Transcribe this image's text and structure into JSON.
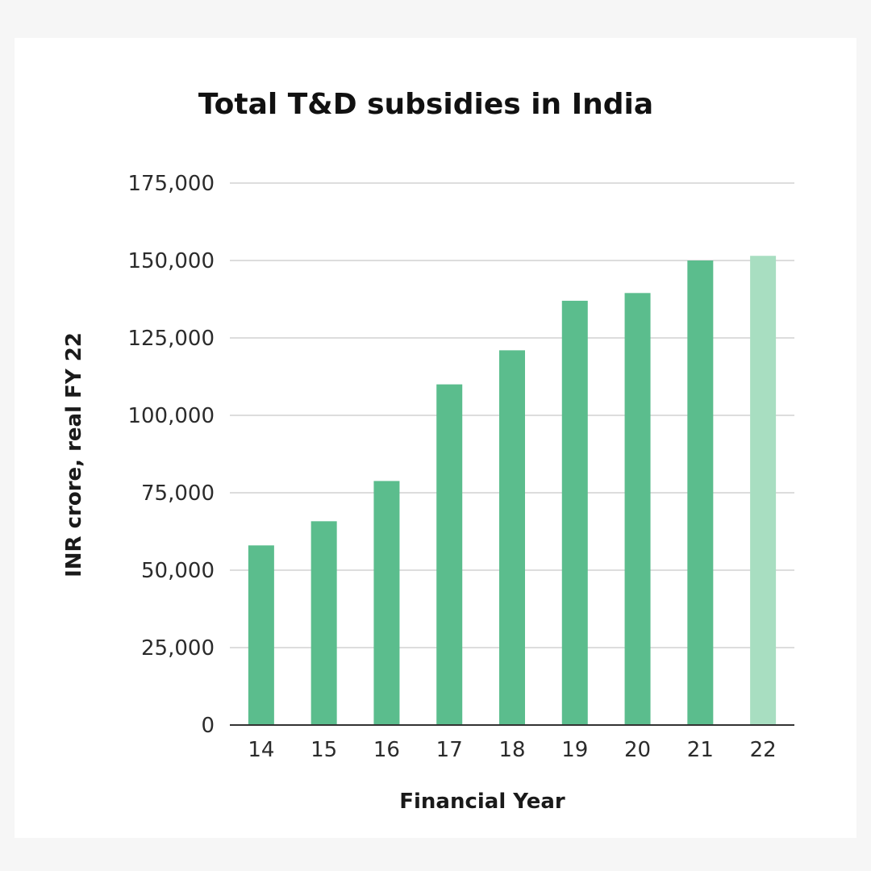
{
  "chart_data": {
    "type": "bar",
    "title": "Total T&D subsidies in India",
    "xlabel": "Financial Year",
    "ylabel": "INR crore, real FY 22",
    "categories": [
      "14",
      "15",
      "16",
      "17",
      "18",
      "19",
      "20",
      "21",
      "22"
    ],
    "values": [
      58000,
      65800,
      78800,
      110000,
      121000,
      137000,
      139500,
      150000,
      151500
    ],
    "ylim": [
      0,
      175000
    ],
    "yticks": [
      0,
      25000,
      50000,
      75000,
      100000,
      125000,
      150000,
      175000
    ],
    "ytick_labels": [
      "0",
      "25,000",
      "50,000",
      "75,000",
      "100,000",
      "125,000",
      "150,000",
      "175,000"
    ],
    "grid": true,
    "colors": {
      "bar": "#5bbd8d",
      "highlight_bar": "#a8dec1",
      "highlight_category": "22"
    }
  }
}
